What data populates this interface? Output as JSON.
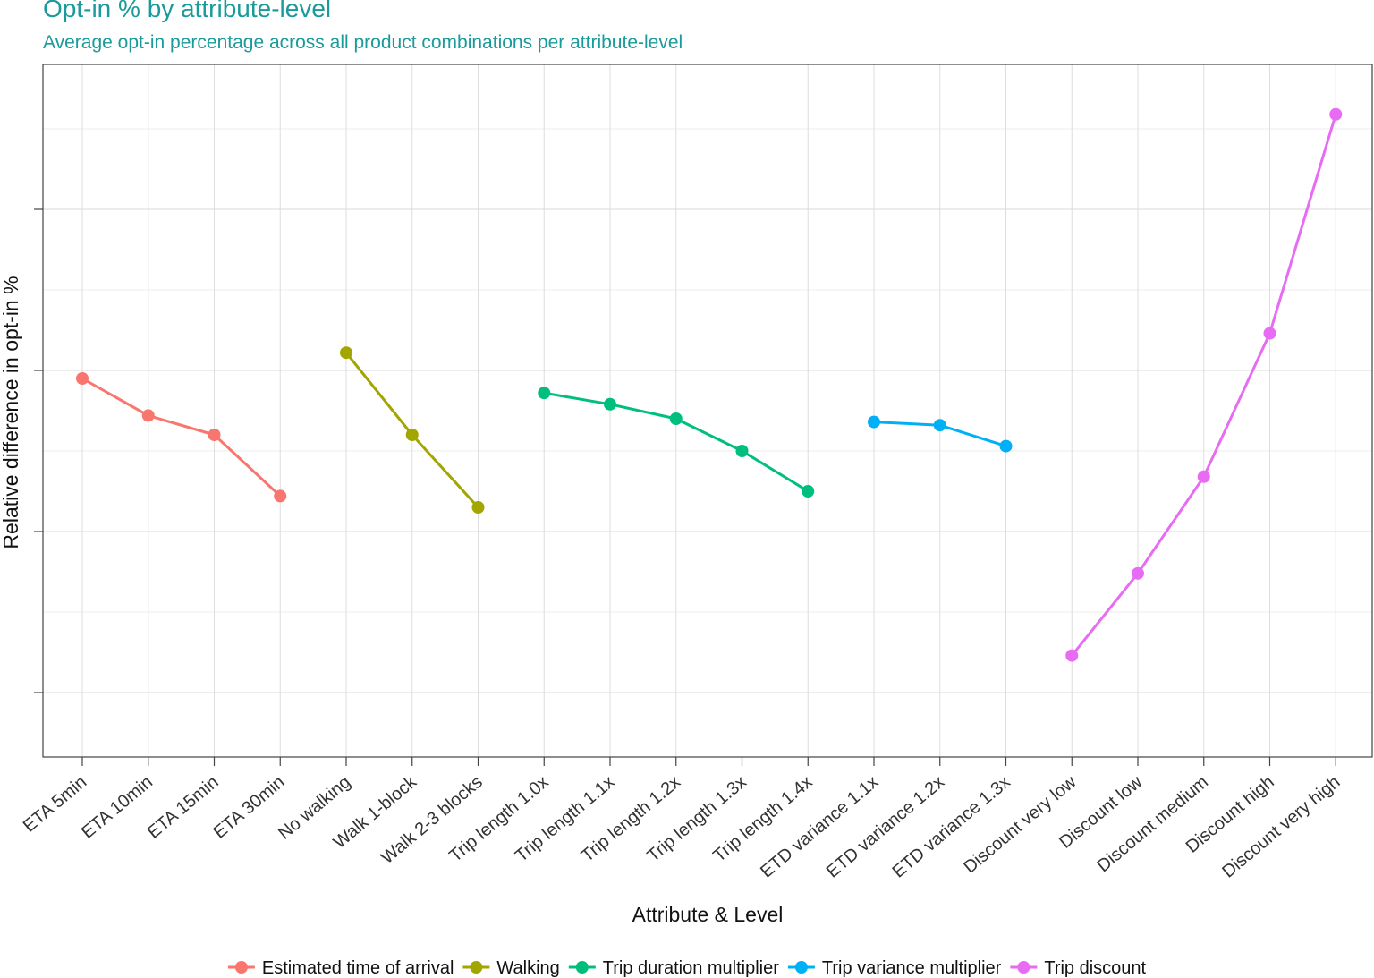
{
  "chart_data": {
    "type": "line",
    "title": "Opt-in % by attribute-level",
    "subtitle": "Average opt-in percentage across all product combinations per attribute-level",
    "xlabel": "Attribute & Level",
    "ylabel": "Relative difference in opt-in %",
    "ylim": [
      -0.7,
      1.45
    ],
    "y_tick_labels_visible": false,
    "grid": true,
    "legend_position": "bottom",
    "categories": [
      "ETA 5min",
      "ETA 10min",
      "ETA 15min",
      "ETA 30min",
      "No walking",
      "Walk 1-block",
      "Walk 2-3 blocks",
      "Trip length 1.0x",
      "Trip length 1.1x",
      "Trip length 1.2x",
      "Trip length 1.3x",
      "Trip length 1.4x",
      "ETD variance 1.1x",
      "ETD variance 1.2x",
      "ETD variance 1.3x",
      "Discount very low",
      "Discount low",
      "Discount medium",
      "Discount high",
      "Discount very high"
    ],
    "series": [
      {
        "name": "Estimated time of arrival",
        "color": "#F8766D",
        "x": [
          "ETA 5min",
          "ETA 10min",
          "ETA 15min",
          "ETA 30min"
        ],
        "values": [
          0.475,
          0.36,
          0.3,
          0.11
        ]
      },
      {
        "name": "Walking",
        "color": "#A3A500",
        "x": [
          "No walking",
          "Walk 1-block",
          "Walk 2-3 blocks"
        ],
        "values": [
          0.555,
          0.3,
          0.075
        ]
      },
      {
        "name": "Trip duration multiplier",
        "color": "#00BF7D",
        "x": [
          "Trip length 1.0x",
          "Trip length 1.1x",
          "Trip length 1.2x",
          "Trip length 1.3x",
          "Trip length 1.4x"
        ],
        "values": [
          0.43,
          0.395,
          0.35,
          0.25,
          0.125
        ]
      },
      {
        "name": "Trip variance multiplier",
        "color": "#00B0F6",
        "x": [
          "ETD variance 1.1x",
          "ETD variance 1.2x",
          "ETD variance 1.3x"
        ],
        "values": [
          0.34,
          0.33,
          0.265
        ]
      },
      {
        "name": "Trip discount",
        "color": "#E76BF3",
        "x": [
          "Discount very low",
          "Discount low",
          "Discount medium",
          "Discount high",
          "Discount very high"
        ],
        "values": [
          -0.385,
          -0.13,
          0.17,
          0.615,
          1.295
        ]
      }
    ]
  }
}
